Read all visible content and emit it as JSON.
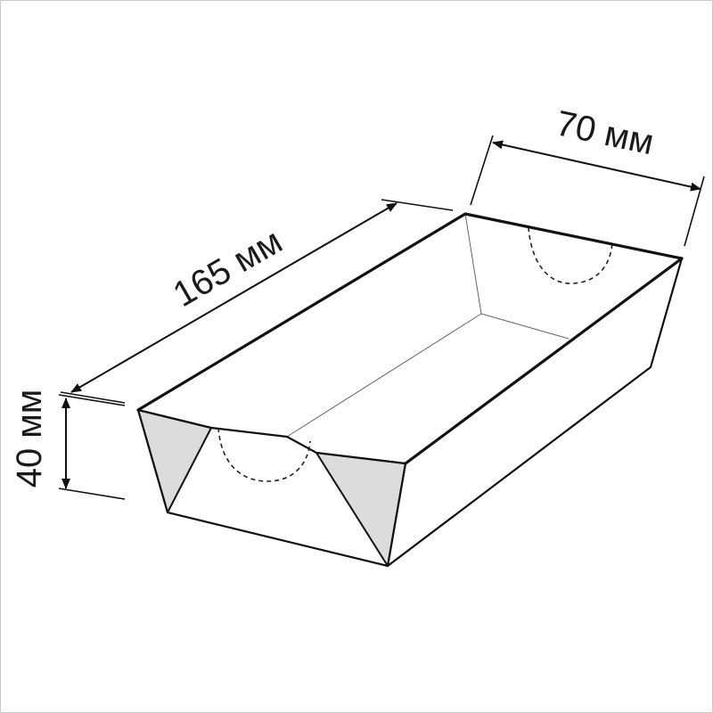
{
  "dimensions": {
    "length_label": "165 мм",
    "width_label": "70 мм",
    "height_label": "40 мм"
  },
  "colors": {
    "line": "#111111",
    "flap_fill": "#dcdcdc",
    "panel_fill": "#ffffff",
    "border": "#c8c8c8"
  }
}
